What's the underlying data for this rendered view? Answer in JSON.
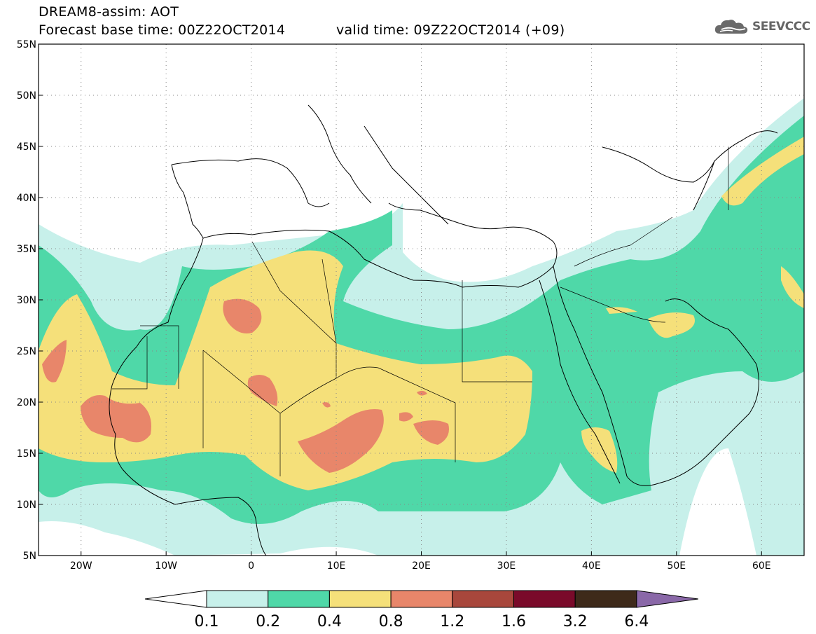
{
  "header": {
    "title": "DREAM8-assim: AOT",
    "base_time": "Forecast base time: 00Z22OCT2014",
    "valid_time": "valid time: 09Z22OCT2014 (+09)",
    "logo_text": "SEEVCCC"
  },
  "map": {
    "lon_range": [
      -25,
      65
    ],
    "lat_range": [
      5,
      55
    ],
    "lat_labels": [
      "5N",
      "10N",
      "15N",
      "20N",
      "25N",
      "30N",
      "35N",
      "40N",
      "45N",
      "50N",
      "55N"
    ],
    "lon_labels": [
      "20W",
      "10W",
      "0",
      "10E",
      "20E",
      "30E",
      "40E",
      "50E",
      "60E"
    ],
    "grid": "dotted"
  },
  "legend": {
    "levels": [
      "0.1",
      "0.2",
      "0.4",
      "0.8",
      "1.2",
      "1.6",
      "3.2",
      "6.4"
    ],
    "colors": [
      "#ffffff",
      "#c7f0ea",
      "#4fd8a8",
      "#f5e07a",
      "#e8866a",
      "#a8473c",
      "#7a0a2a",
      "#3e2a1a",
      "#8a68a8"
    ]
  }
}
